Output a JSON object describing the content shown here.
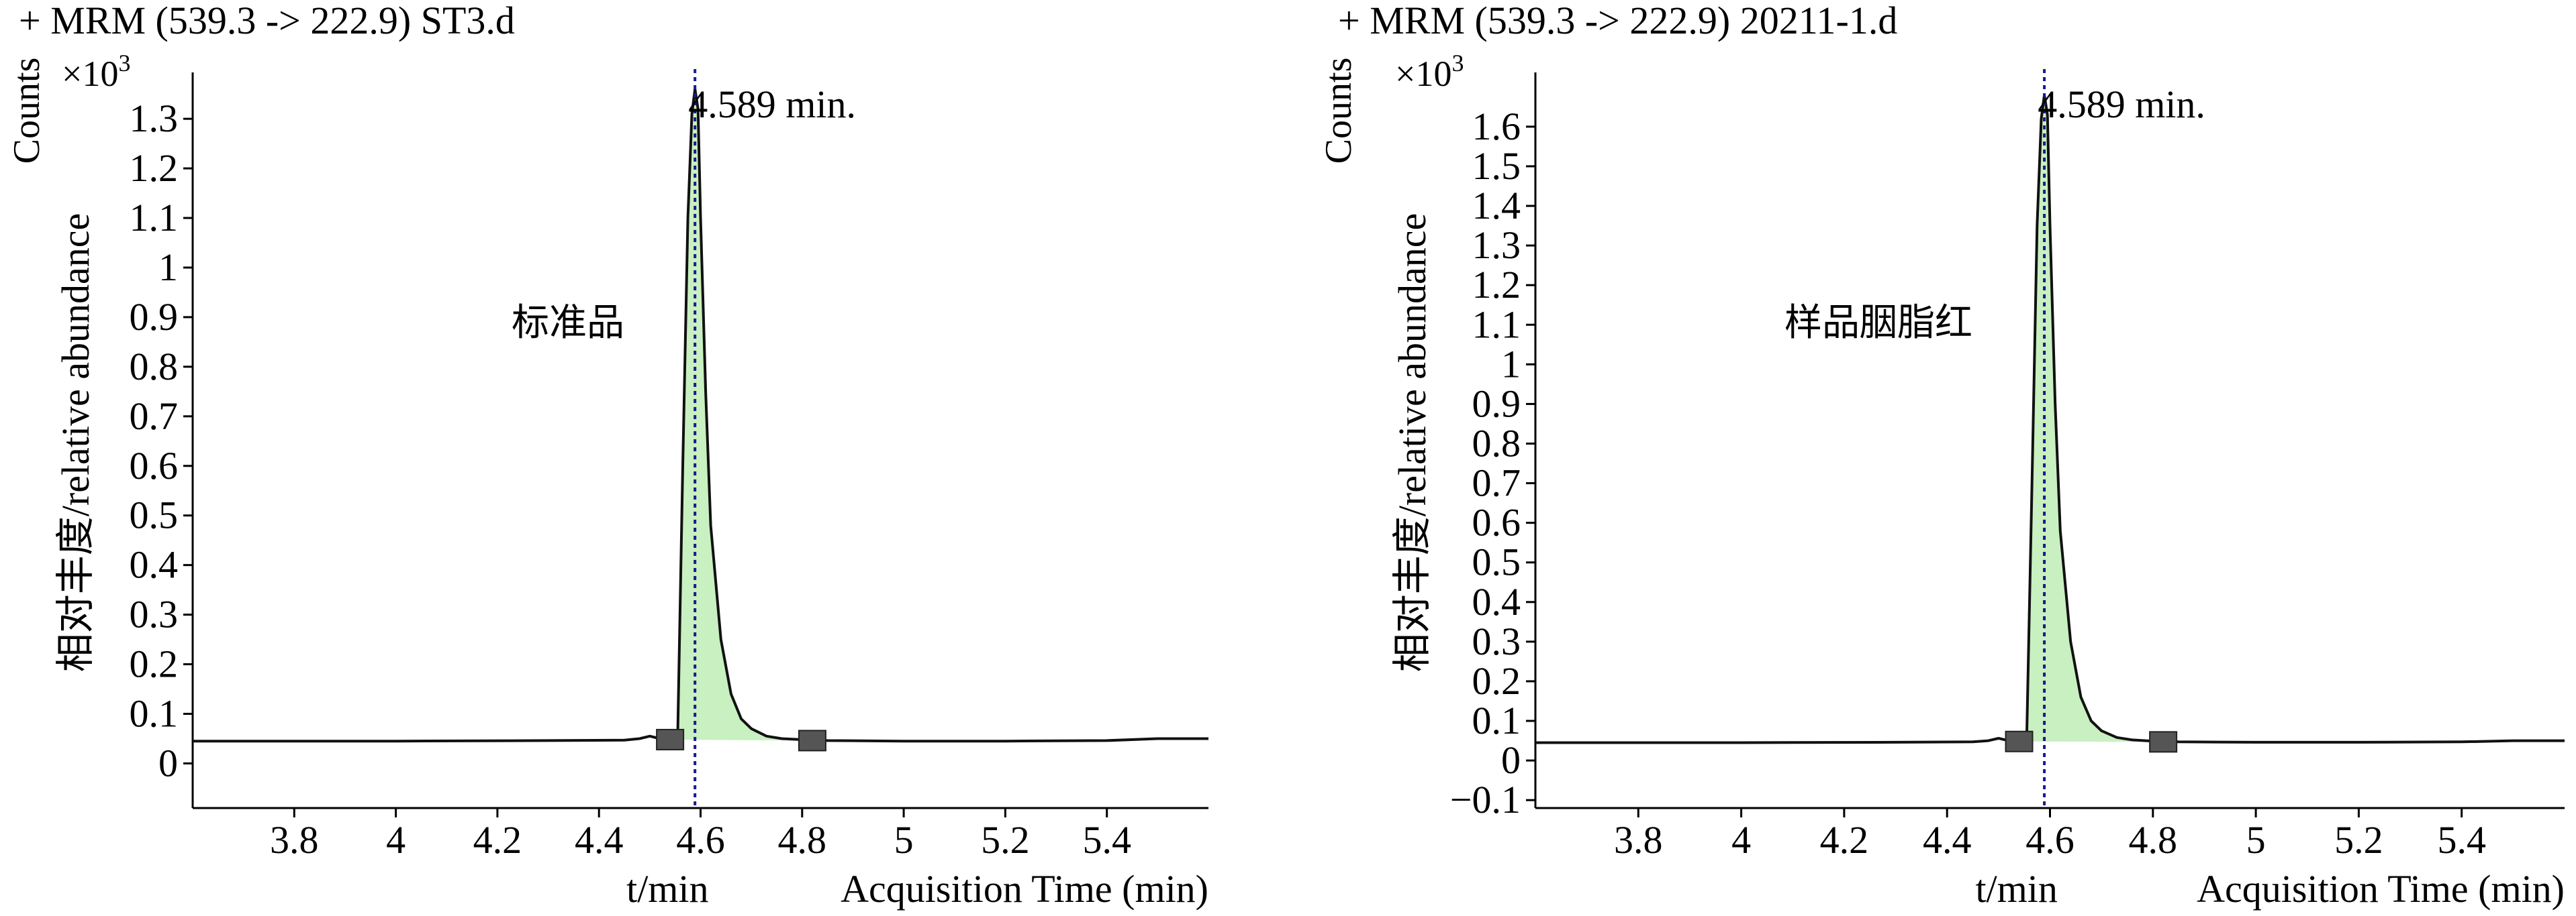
{
  "chart_data": [
    {
      "type": "line",
      "title": "+ MRM (539.3 -> 222.9) ST3.d",
      "y_units": "Counts",
      "y_multiplier": "×10",
      "y_multiplier_exp": "3",
      "ylabel": "相对丰度/relative abundance",
      "xlabel_left": "t/min",
      "xlabel_right": "Acquisition Time (min)",
      "sample_label": "标准品",
      "peak_label": "4.589 min.",
      "peak_rt": 4.589,
      "xlim": [
        3.6,
        5.6
      ],
      "ylim": [
        -0.09,
        1.38
      ],
      "x_ticks": [
        3.8,
        4.0,
        4.2,
        4.4,
        4.6,
        4.8,
        5.0,
        5.2,
        5.4
      ],
      "x_tick_labels": [
        "3.8",
        "4",
        "4.2",
        "4.4",
        "4.6",
        "4.8",
        "5",
        "5.2",
        "5.4"
      ],
      "y_ticks": [
        0,
        0.1,
        0.2,
        0.3,
        0.4,
        0.5,
        0.6,
        0.7,
        0.8,
        0.9,
        1.0,
        1.1,
        1.2,
        1.3
      ],
      "y_tick_labels": [
        "0",
        "0.1",
        "0.2",
        "0.3",
        "0.4",
        "0.5",
        "0.6",
        "0.7",
        "0.8",
        "0.9",
        "1",
        "1.1",
        "1.2",
        "1.3"
      ],
      "integration_range": [
        4.54,
        4.82
      ],
      "series": [
        {
          "x": [
            3.6,
            4.0,
            4.3,
            4.45,
            4.48,
            4.5,
            4.52,
            4.54,
            4.555,
            4.565,
            4.575,
            4.583,
            4.589,
            4.595,
            4.6,
            4.61,
            4.62,
            4.64,
            4.66,
            4.68,
            4.7,
            4.73,
            4.76,
            4.8,
            4.85,
            5.0,
            5.2,
            5.4,
            5.5,
            5.6
          ],
          "y": [
            0.045,
            0.045,
            0.046,
            0.047,
            0.05,
            0.055,
            0.05,
            0.048,
            0.06,
            0.6,
            1.1,
            1.31,
            1.36,
            1.32,
            1.1,
            0.75,
            0.48,
            0.25,
            0.14,
            0.09,
            0.07,
            0.055,
            0.05,
            0.048,
            0.046,
            0.045,
            0.045,
            0.046,
            0.05,
            0.05
          ]
        }
      ]
    },
    {
      "type": "line",
      "title": "+ MRM (539.3 -> 222.9) 20211-1.d",
      "y_units": "Counts",
      "y_multiplier": "×10",
      "y_multiplier_exp": "3",
      "ylabel": "相对丰度/relative abundance",
      "xlabel_left": "t/min",
      "xlabel_right": "Acquisition Time (min)",
      "sample_label": "样品胭脂红",
      "peak_label": "4.589 min.",
      "peak_rt": 4.589,
      "xlim": [
        3.6,
        5.6
      ],
      "ylim": [
        -0.12,
        1.72
      ],
      "x_ticks": [
        3.8,
        4.0,
        4.2,
        4.4,
        4.6,
        4.8,
        5.0,
        5.2,
        5.4
      ],
      "x_tick_labels": [
        "3.8",
        "4",
        "4.2",
        "4.4",
        "4.6",
        "4.8",
        "5",
        "5.2",
        "5.4"
      ],
      "y_ticks": [
        -0.1,
        0,
        0.1,
        0.2,
        0.3,
        0.4,
        0.5,
        0.6,
        0.7,
        0.8,
        0.9,
        1.0,
        1.1,
        1.2,
        1.3,
        1.4,
        1.5,
        1.6
      ],
      "y_tick_labels": [
        "−0.1",
        "0",
        "0.1",
        "0.2",
        "0.3",
        "0.4",
        "0.5",
        "0.6",
        "0.7",
        "0.8",
        "0.9",
        "1",
        "1.1",
        "1.2",
        "1.3",
        "1.4",
        "1.5",
        "1.6"
      ],
      "integration_range": [
        4.54,
        4.82
      ],
      "series": [
        {
          "x": [
            3.6,
            4.0,
            4.3,
            4.45,
            4.48,
            4.5,
            4.52,
            4.54,
            4.555,
            4.565,
            4.575,
            4.583,
            4.589,
            4.595,
            4.6,
            4.61,
            4.62,
            4.64,
            4.66,
            4.68,
            4.7,
            4.73,
            4.76,
            4.8,
            4.85,
            5.0,
            5.2,
            5.4,
            5.5,
            5.6
          ],
          "y": [
            0.045,
            0.045,
            0.046,
            0.047,
            0.05,
            0.056,
            0.05,
            0.048,
            0.07,
            0.7,
            1.35,
            1.62,
            1.68,
            1.63,
            1.35,
            0.9,
            0.58,
            0.3,
            0.16,
            0.1,
            0.075,
            0.058,
            0.052,
            0.049,
            0.047,
            0.046,
            0.046,
            0.047,
            0.05,
            0.05
          ]
        }
      ]
    }
  ]
}
